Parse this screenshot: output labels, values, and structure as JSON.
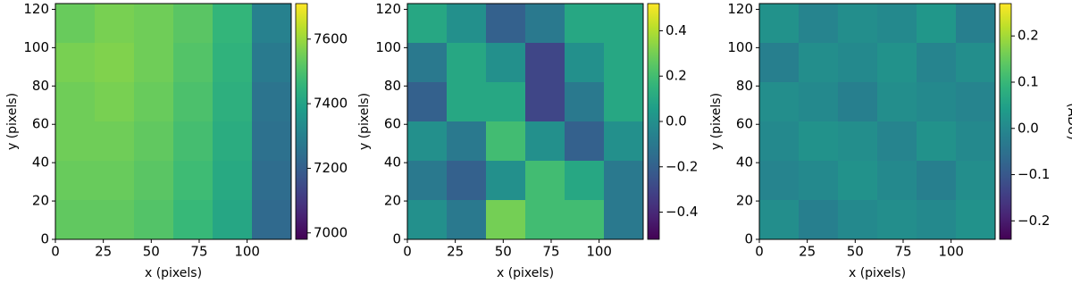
{
  "chart_data": [
    {
      "type": "heatmap",
      "colormap": "viridis",
      "xlabel": "x (pixels)",
      "ylabel": "y (pixels)",
      "xlim": [
        0,
        123
      ],
      "ylim": [
        0,
        123
      ],
      "xticks": [
        0,
        25,
        50,
        75,
        100
      ],
      "yticks": [
        0,
        20,
        40,
        60,
        80,
        100,
        120
      ],
      "clim": [
        6980,
        7710
      ],
      "cticks": [
        7000,
        7200,
        7400,
        7600
      ],
      "z": [
        [
          7540,
          7560,
          7550,
          7520,
          7460,
          7300
        ],
        [
          7560,
          7570,
          7550,
          7510,
          7450,
          7280
        ],
        [
          7550,
          7560,
          7540,
          7500,
          7440,
          7260
        ],
        [
          7550,
          7550,
          7530,
          7490,
          7430,
          7250
        ],
        [
          7540,
          7540,
          7520,
          7480,
          7420,
          7240
        ],
        [
          7530,
          7530,
          7510,
          7470,
          7410,
          7230
        ]
      ]
    },
    {
      "type": "heatmap",
      "colormap": "viridis",
      "xlabel": "x (pixels)",
      "ylabel": "y (pixels)",
      "xlim": [
        0,
        123
      ],
      "ylim": [
        0,
        123
      ],
      "xticks": [
        0,
        25,
        50,
        75,
        100
      ],
      "yticks": [
        0,
        20,
        40,
        60,
        80,
        100,
        120
      ],
      "clim": [
        -0.52,
        0.52
      ],
      "cticks": [
        {
          "value": -0.4,
          "label": "−0.4"
        },
        {
          "value": -0.2,
          "label": "−0.2"
        },
        {
          "value": 0,
          "label": "0.0"
        },
        {
          "value": 0.2,
          "label": "0.2"
        },
        {
          "value": 0.4,
          "label": "0.4"
        }
      ],
      "z": [
        [
          0.1,
          0.0,
          -0.2,
          -0.1,
          0.1,
          0.1
        ],
        [
          -0.1,
          0.1,
          0.0,
          -0.3,
          0.0,
          0.1
        ],
        [
          -0.2,
          0.1,
          0.1,
          -0.3,
          -0.1,
          0.1
        ],
        [
          0.0,
          -0.1,
          0.2,
          0.0,
          -0.2,
          0.0
        ],
        [
          -0.1,
          -0.2,
          0.0,
          0.2,
          0.1,
          -0.1
        ],
        [
          0.0,
          -0.1,
          0.3,
          0.2,
          0.2,
          -0.1
        ]
      ]
    },
    {
      "type": "heatmap",
      "colormap": "viridis",
      "xlabel": "x (pixels)",
      "ylabel": "y (pixels)",
      "clabel": "(ADU)",
      "xlim": [
        0,
        123
      ],
      "ylim": [
        0,
        123
      ],
      "xticks": [
        0,
        25,
        50,
        75,
        100
      ],
      "yticks": [
        0,
        20,
        40,
        60,
        80,
        100,
        120
      ],
      "clim": [
        -0.24,
        0.27
      ],
      "cticks": [
        {
          "value": -0.2,
          "label": "−0.2"
        },
        {
          "value": -0.1,
          "label": "−0.1"
        },
        {
          "value": 0,
          "label": "0.0"
        },
        {
          "value": 0.1,
          "label": "0.1"
        },
        {
          "value": 0.2,
          "label": "0.2"
        }
      ],
      "z": [
        [
          0.02,
          -0.01,
          0.01,
          0.0,
          0.03,
          -0.02
        ],
        [
          -0.02,
          0.01,
          0.0,
          0.02,
          -0.01,
          0.01
        ],
        [
          0.01,
          0.0,
          -0.02,
          0.01,
          0.0,
          -0.01
        ],
        [
          0.0,
          0.02,
          0.01,
          -0.01,
          0.02,
          0.0
        ],
        [
          -0.01,
          0.0,
          0.02,
          0.0,
          -0.02,
          0.01
        ],
        [
          0.01,
          -0.02,
          0.0,
          0.01,
          0.0,
          0.02
        ]
      ]
    }
  ]
}
